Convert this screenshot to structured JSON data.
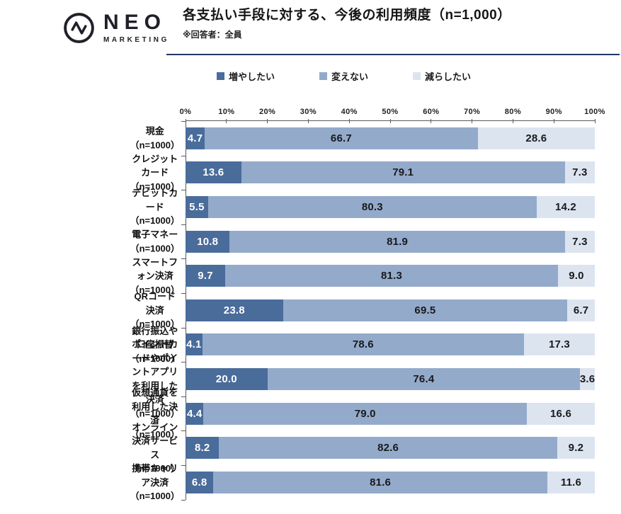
{
  "logo": {
    "brand": "NEO",
    "sub": "MARKETING"
  },
  "header": {
    "title": "各支払い手段に対する、今後の利用頻度（n=1,000）",
    "note": "※回答者：全員"
  },
  "legend": {
    "items": [
      {
        "label": "増やしたい",
        "color": "#4a6c9b"
      },
      {
        "label": "変えない",
        "color": "#93aacb"
      },
      {
        "label": "減らしたい",
        "color": "#dce4f0"
      }
    ]
  },
  "colors": {
    "divider": "#1f3864",
    "axis": "#595959",
    "increase": "#4a6c9b",
    "keep": "#93aacb",
    "decrease": "#dce4f0"
  },
  "chart_data": {
    "type": "bar",
    "stacked": true,
    "orientation": "horizontal",
    "title": "各支払い手段に対する、今後の利用頻度（n=1,000）",
    "legend_position": "top",
    "grid": false,
    "value_format": "one_decimal",
    "x_axis": {
      "min": 0,
      "max": 100,
      "tick_labels": [
        "0%",
        "10%",
        "20%",
        "30%",
        "40%",
        "50%",
        "60%",
        "70%",
        "80%",
        "90%",
        "100%"
      ]
    },
    "categories": [
      "現金（n=1000）",
      "クレジットカード（n=1000）",
      "デビットカード（n=1000）",
      "電子マネー（n=1000）",
      "スマートフォン決済（n=1000）",
      "QRコード決済（n=1000）",
      "銀行振込や口座振替（n=1000）",
      "ポイントカードやポイントアプリを利用した\n決済（n=1000）",
      "仮想通貨を利用した決済（n=1000）",
      "オンライン決済サービス（n=1000）",
      "携帯キャリア決済（n=1000）"
    ],
    "series": [
      {
        "name": "増やしたい",
        "color": "#4a6c9b",
        "text_color": "#ffffff",
        "values": [
          4.7,
          13.6,
          5.5,
          10.8,
          9.7,
          23.8,
          4.1,
          20.0,
          4.4,
          8.2,
          6.8
        ]
      },
      {
        "name": "変えない",
        "color": "#93aacb",
        "text_color": "#1a1a1a",
        "values": [
          66.7,
          79.1,
          80.3,
          81.9,
          81.3,
          69.5,
          78.6,
          76.4,
          79.0,
          82.6,
          81.6
        ]
      },
      {
        "name": "減らしたい",
        "color": "#dce4f0",
        "text_color": "#1a1a1a",
        "values": [
          28.6,
          7.3,
          14.2,
          7.3,
          9.0,
          6.7,
          17.3,
          3.6,
          16.6,
          9.2,
          11.6
        ]
      }
    ]
  }
}
